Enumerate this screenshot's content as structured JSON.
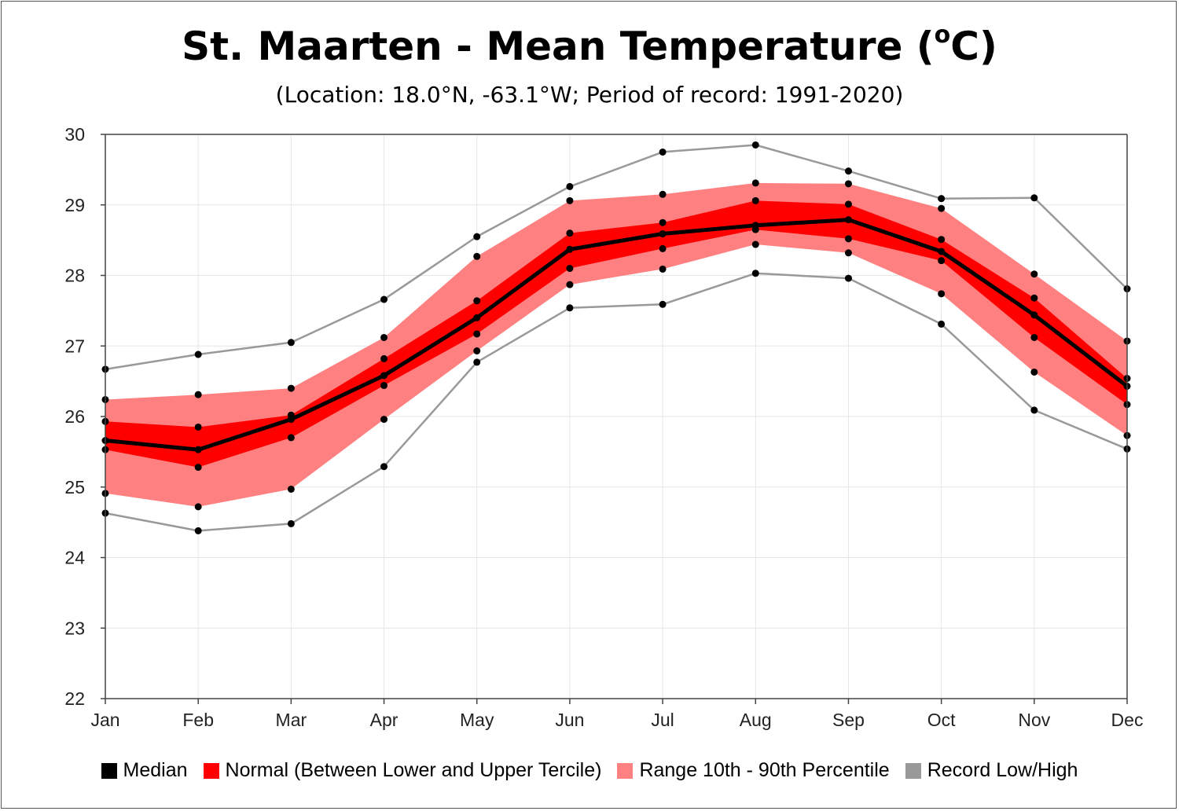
{
  "chart_data": {
    "type": "line",
    "title": "St. Maarten - Mean Temperature (",
    "title_unit_sup": "o",
    "title_unit_tail": "C)",
    "subtitle": "(Location: 18.0°N, -63.1°W; Period of record: 1991-2020)",
    "categories": [
      "Jan",
      "Feb",
      "Mar",
      "Apr",
      "May",
      "Jun",
      "Jul",
      "Aug",
      "Sep",
      "Oct",
      "Nov",
      "Dec"
    ],
    "ylim": [
      22,
      30
    ],
    "yticks": [
      "22",
      "23",
      "24",
      "25",
      "26",
      "27",
      "28",
      "29",
      "30"
    ],
    "grid": true,
    "legend_position": "bottom",
    "series": [
      {
        "name": "Record Low/High",
        "color": "#999999",
        "role": "record_high",
        "values": [
          26.67,
          26.88,
          27.05,
          27.66,
          28.55,
          29.26,
          29.75,
          29.85,
          29.48,
          29.09,
          29.1,
          27.81
        ]
      },
      {
        "name": "Range 10th - 90th Percentile",
        "color": "#ff8080",
        "role": "p90",
        "values": [
          26.24,
          26.31,
          26.4,
          27.12,
          28.27,
          29.06,
          29.15,
          29.31,
          29.3,
          28.95,
          28.02,
          27.07
        ]
      },
      {
        "name": "Normal (Between Lower and Upper Tercile)",
        "color": "#ff0000",
        "role": "upper_tercile",
        "values": [
          25.93,
          25.85,
          26.02,
          26.82,
          27.64,
          28.6,
          28.75,
          29.06,
          29.01,
          28.51,
          27.68,
          26.54
        ]
      },
      {
        "name": "Median",
        "color": "#000000",
        "role": "median",
        "values": [
          25.66,
          25.53,
          25.96,
          26.58,
          27.4,
          28.37,
          28.59,
          28.71,
          28.79,
          28.34,
          27.44,
          26.43
        ]
      },
      {
        "name": "Normal (Between Lower and Upper Tercile)",
        "color": "#ff0000",
        "role": "lower_tercile",
        "values": [
          25.53,
          25.28,
          25.7,
          26.44,
          27.17,
          28.1,
          28.38,
          28.65,
          28.52,
          28.21,
          27.12,
          26.17
        ]
      },
      {
        "name": "Range 10th - 90th Percentile",
        "color": "#ff8080",
        "role": "p10",
        "values": [
          24.91,
          24.72,
          24.97,
          25.96,
          26.93,
          27.87,
          28.09,
          28.44,
          28.32,
          27.74,
          26.63,
          25.73
        ]
      },
      {
        "name": "Record Low/High",
        "color": "#999999",
        "role": "record_low",
        "values": [
          24.63,
          24.38,
          24.48,
          25.29,
          26.77,
          27.54,
          27.59,
          28.03,
          27.96,
          27.31,
          26.09,
          25.54
        ]
      }
    ],
    "legend": [
      {
        "label": "Median",
        "color": "#000000"
      },
      {
        "label": "Normal (Between Lower and Upper Tercile)",
        "color": "#ff0000"
      },
      {
        "label": "Range 10th - 90th Percentile",
        "color": "#ff8080"
      },
      {
        "label": "Record Low/High",
        "color": "#999999"
      }
    ]
  }
}
